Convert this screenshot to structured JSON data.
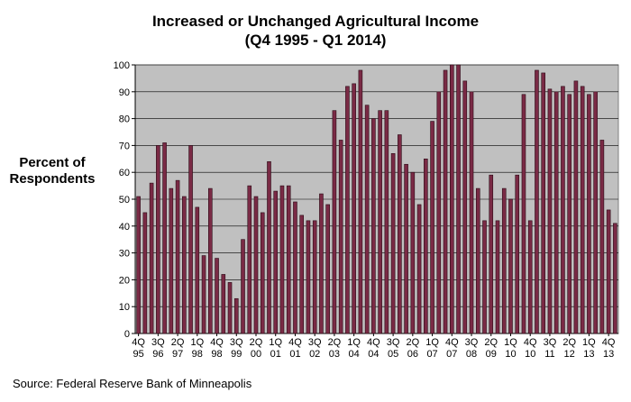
{
  "chart_data": {
    "type": "bar",
    "title": "Increased or Unchanged Agricultural Income",
    "subtitle": "(Q4 1995 - Q1 2014)",
    "ylabel_line1": "Percent of",
    "ylabel_line2": "Respondents",
    "source": "Source: Federal Reserve Bank of Minneapolis",
    "ylim": [
      0,
      100
    ],
    "yticks": [
      0,
      10,
      20,
      30,
      40,
      50,
      60,
      70,
      80,
      90,
      100
    ],
    "grid": true,
    "legend": "none",
    "bar_color": "#7a2a45",
    "plot_bg": "#c0c0c0",
    "x_tick_labels": [
      {
        "q": "4Q",
        "y": "95"
      },
      {
        "q": "3Q",
        "y": "96"
      },
      {
        "q": "2Q",
        "y": "97"
      },
      {
        "q": "1Q",
        "y": "98"
      },
      {
        "q": "4Q",
        "y": "98"
      },
      {
        "q": "3Q",
        "y": "99"
      },
      {
        "q": "2Q",
        "y": "00"
      },
      {
        "q": "1Q",
        "y": "01"
      },
      {
        "q": "4Q",
        "y": "01"
      },
      {
        "q": "3Q",
        "y": "02"
      },
      {
        "q": "2Q",
        "y": "03"
      },
      {
        "q": "1Q",
        "y": "04"
      },
      {
        "q": "4Q",
        "y": "04"
      },
      {
        "q": "3Q",
        "y": "05"
      },
      {
        "q": "2Q",
        "y": "06"
      },
      {
        "q": "1Q",
        "y": "07"
      },
      {
        "q": "4Q",
        "y": "07"
      },
      {
        "q": "3Q",
        "y": "08"
      },
      {
        "q": "2Q",
        "y": "09"
      },
      {
        "q": "1Q",
        "y": "10"
      },
      {
        "q": "4Q",
        "y": "10"
      },
      {
        "q": "3Q",
        "y": "11"
      },
      {
        "q": "2Q",
        "y": "12"
      },
      {
        "q": "1Q",
        "y": "13"
      },
      {
        "q": "4Q",
        "y": "13"
      }
    ],
    "categories": [
      "4Q95",
      "1Q96",
      "2Q96",
      "3Q96",
      "4Q96",
      "1Q97",
      "2Q97",
      "3Q97",
      "4Q97",
      "1Q98",
      "2Q98",
      "3Q98",
      "4Q98",
      "1Q99",
      "2Q99",
      "3Q99",
      "4Q99",
      "1Q00",
      "2Q00",
      "3Q00",
      "4Q00",
      "1Q01",
      "2Q01",
      "3Q01",
      "4Q01",
      "1Q02",
      "2Q02",
      "3Q02",
      "4Q02",
      "1Q03",
      "2Q03",
      "3Q03",
      "4Q03",
      "1Q04",
      "2Q04",
      "3Q04",
      "4Q04",
      "1Q05",
      "2Q05",
      "3Q05",
      "4Q05",
      "1Q06",
      "2Q06",
      "3Q06",
      "4Q06",
      "1Q07",
      "2Q07",
      "3Q07",
      "4Q07",
      "1Q08",
      "2Q08",
      "3Q08",
      "4Q08",
      "1Q09",
      "2Q09",
      "3Q09",
      "4Q09",
      "1Q10",
      "2Q10",
      "3Q10",
      "4Q10",
      "1Q11",
      "2Q11",
      "3Q11",
      "4Q11",
      "1Q12",
      "2Q12",
      "3Q12",
      "4Q12",
      "1Q13",
      "2Q13",
      "3Q13",
      "4Q13",
      "1Q14"
    ],
    "values": [
      51,
      45,
      56,
      70,
      71,
      54,
      57,
      51,
      70,
      47,
      29,
      54,
      28,
      22,
      19,
      13,
      35,
      55,
      51,
      45,
      64,
      53,
      55,
      55,
      49,
      44,
      42,
      42,
      52,
      48,
      83,
      72,
      92,
      93,
      98,
      85,
      80,
      83,
      83,
      67,
      74,
      63,
      60,
      48,
      65,
      79,
      90,
      98,
      100,
      100,
      94,
      90,
      54,
      42,
      59,
      42,
      54,
      50,
      59,
      89,
      42,
      98,
      97,
      91,
      90,
      92,
      89,
      94,
      92,
      89,
      90,
      72,
      46,
      41
    ]
  }
}
